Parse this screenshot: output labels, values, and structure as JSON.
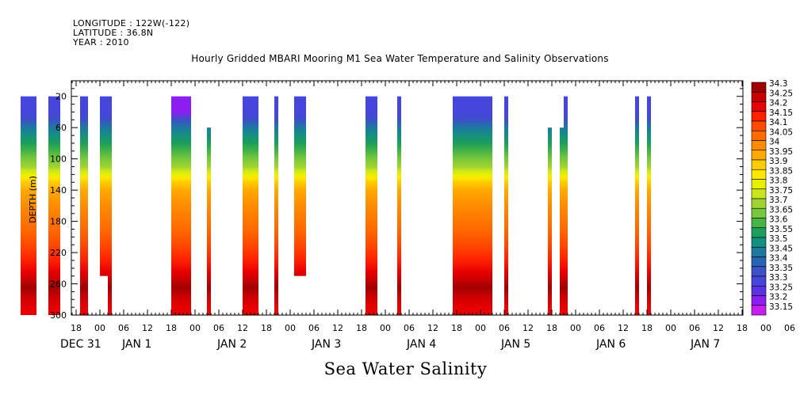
{
  "header": {
    "longitude": "LONGITUDE : 122W(-122)",
    "latitude": "LATITUDE : 36.8N",
    "year": "YEAR : 2010"
  },
  "chart_data": {
    "type": "heatmap",
    "title": "Hourly Gridded MBARI Mooring M1 Sea Water Temperature and Salinity Observations",
    "subtitle": "Sea Water Salinity",
    "ylabel": "DEPTH (m)",
    "xlabel": "",
    "ylim": [
      300,
      0
    ],
    "y_ticks": [
      20,
      60,
      100,
      140,
      180,
      220,
      260,
      300
    ],
    "x_hour_ticks": [
      "18",
      "00",
      "06",
      "12",
      "18",
      "00",
      "06",
      "12",
      "18",
      "00",
      "06",
      "12",
      "18",
      "00",
      "06",
      "12",
      "18",
      "00",
      "06",
      "12",
      "18",
      "00",
      "06",
      "12",
      "18",
      "00",
      "06",
      "12",
      "18",
      "00",
      "06",
      "12",
      "18"
    ],
    "x_day_labels": [
      "DEC 31",
      "JAN  1",
      "JAN  2",
      "JAN  3",
      "JAN  4",
      "JAN  5",
      "JAN  6",
      "JAN  7"
    ],
    "colorbar_levels": [
      "34.3",
      "34.25",
      "34.2",
      "34.15",
      "34.1",
      "34.05",
      "34",
      "33.95",
      "33.9",
      "33.85",
      "33.8",
      "33.75",
      "33.7",
      "33.65",
      "33.6",
      "33.55",
      "33.5",
      "33.45",
      "33.4",
      "33.35",
      "33.3",
      "33.25",
      "33.2",
      "33.15"
    ],
    "colorbar_colors": [
      "#a00000",
      "#c80000",
      "#e60000",
      "#ff2000",
      "#ff4a00",
      "#ff6a00",
      "#ff8c00",
      "#ffaa00",
      "#ffcc00",
      "#ffe600",
      "#e6f000",
      "#c8e61e",
      "#a0d232",
      "#78c83c",
      "#46b446",
      "#1e9e5a",
      "#149080",
      "#1e78a0",
      "#2864b4",
      "#3c50c8",
      "#4646dc",
      "#5a32e6",
      "#8c1ef0",
      "#c81ef0"
    ],
    "profile_surface_to_bottom": [
      33.3,
      33.3,
      33.35,
      33.45,
      33.5,
      33.55,
      33.6,
      33.65,
      33.7,
      33.75,
      33.8,
      33.85,
      33.9,
      33.95,
      34.0,
      34.05,
      34.1,
      34.15,
      34.2,
      34.25,
      34.3,
      34.25,
      34.2
    ],
    "profile_depths": [
      20,
      40,
      50,
      60,
      70,
      80,
      90,
      100,
      110,
      115,
      120,
      125,
      130,
      140,
      160,
      190,
      210,
      230,
      245,
      255,
      265,
      275,
      290
    ],
    "segments": [
      {
        "start": "2009-12-31T04:00",
        "end": "2009-12-31T08:00",
        "top": 20,
        "bottom": 300
      },
      {
        "start": "2009-12-31T11:00",
        "end": "2009-12-31T14:00",
        "top": 20,
        "bottom": 300
      },
      {
        "start": "2009-12-31T19:00",
        "end": "2009-12-31T21:00",
        "top": 20,
        "bottom": 300
      },
      {
        "start": "2010-01-01T00:00",
        "end": "2010-01-01T02:00",
        "top": 20,
        "bottom": 250
      },
      {
        "start": "2010-01-01T02:00",
        "end": "2010-01-01T03:00",
        "top": 20,
        "bottom": 300
      },
      {
        "start": "2010-01-01T18:00",
        "end": "2010-01-01T23:00",
        "top": 20,
        "bottom": 300,
        "surface": 33.2
      },
      {
        "start": "2010-01-02T03:00",
        "end": "2010-01-02T04:00",
        "top": 60,
        "bottom": 300
      },
      {
        "start": "2010-01-02T12:00",
        "end": "2010-01-02T16:00",
        "top": 20,
        "bottom": 300
      },
      {
        "start": "2010-01-02T20:00",
        "end": "2010-01-02T21:00",
        "top": 20,
        "bottom": 300
      },
      {
        "start": "2010-01-03T01:00",
        "end": "2010-01-03T04:00",
        "top": 20,
        "bottom": 250
      },
      {
        "start": "2010-01-03T19:00",
        "end": "2010-01-03T22:00",
        "top": 20,
        "bottom": 300
      },
      {
        "start": "2010-01-04T03:00",
        "end": "2010-01-04T04:00",
        "top": 20,
        "bottom": 300
      },
      {
        "start": "2010-01-04T17:00",
        "end": "2010-01-05T03:00",
        "top": 20,
        "bottom": 300
      },
      {
        "start": "2010-01-05T06:00",
        "end": "2010-01-05T07:00",
        "top": 20,
        "bottom": 300
      },
      {
        "start": "2010-01-05T17:00",
        "end": "2010-01-05T18:00",
        "top": 60,
        "bottom": 300
      },
      {
        "start": "2010-01-05T20:00",
        "end": "2010-01-05T21:00",
        "top": 60,
        "bottom": 300
      },
      {
        "start": "2010-01-05T21:00",
        "end": "2010-01-05T22:00",
        "top": 20,
        "bottom": 300
      },
      {
        "start": "2010-01-06T15:00",
        "end": "2010-01-06T16:00",
        "top": 20,
        "bottom": 300
      },
      {
        "start": "2010-01-06T18:00",
        "end": "2010-01-06T19:00",
        "top": 20,
        "bottom": 300
      }
    ]
  }
}
